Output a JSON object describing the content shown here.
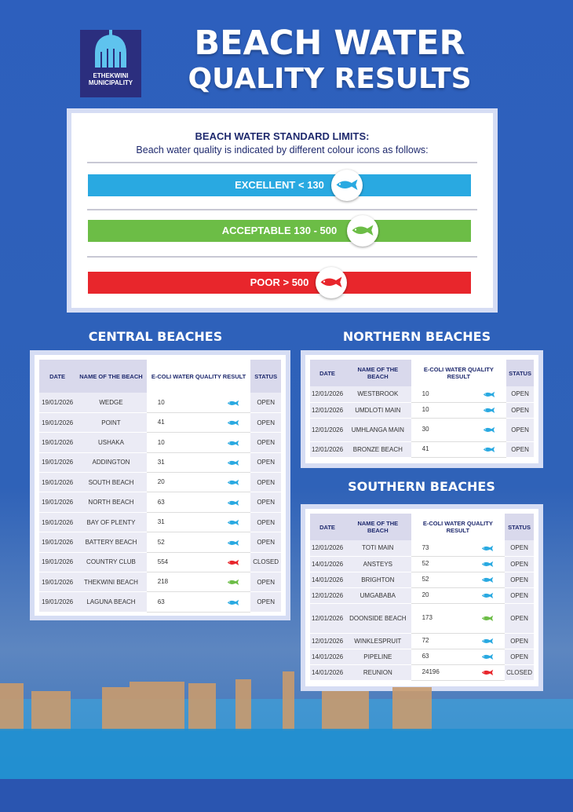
{
  "header": {
    "logo_text": [
      "ETHEKWINI",
      "MUNICIPALITY"
    ],
    "title": [
      "BEACH WATER",
      "QUALITY RESULTS"
    ]
  },
  "legend": {
    "title": "BEACH WATER STANDARD LIMITS:",
    "subtitle": "Beach water quality is indicated by different colour icons as follows:",
    "levels": [
      "EXCELLENT < 130",
      "ACCEPTABLE 130 - 500",
      "POOR > 500"
    ]
  },
  "central": {
    "title": "CENTRAL BEACHES",
    "columns": [
      "DATE",
      "NAME OF THE BEACH",
      "E-COLI WATER QUALITY RESULT",
      "STATUS"
    ],
    "rows": [
      [
        "19/01/2026",
        "WEDGE",
        10,
        "OPEN"
      ],
      [
        "19/01/2026",
        "POINT",
        41,
        "OPEN"
      ],
      [
        "19/01/2026",
        "USHAKA",
        10,
        "OPEN"
      ],
      [
        "19/01/2026",
        "ADDINGTON",
        31,
        "OPEN"
      ],
      [
        "19/01/2026",
        "SOUTH BEACH",
        20,
        "OPEN"
      ],
      [
        "19/01/2026",
        "NORTH BEACH",
        63,
        "OPEN"
      ],
      [
        "19/01/2026",
        "BAY OF PLENTY",
        31,
        "OPEN"
      ],
      [
        "19/01/2026",
        "BATTERY BEACH",
        52,
        "OPEN"
      ],
      [
        "19/01/2026",
        "COUNTRY CLUB",
        554,
        "CLOSED"
      ],
      [
        "19/01/2026",
        "THEKWINI BEACH",
        218,
        "OPEN"
      ],
      [
        "19/01/2026",
        "LAGUNA BEACH",
        63,
        "OPEN"
      ]
    ]
  },
  "northern": {
    "title": "NORTHERN BEACHES",
    "columns": [
      "DATE",
      "NAME OF THE BEACH",
      "E-COLI WATER QUALITY RESULT",
      "STATUS"
    ],
    "rows": [
      [
        "12/01/2026",
        "WESTBROOK",
        10,
        "OPEN"
      ],
      [
        "12/01/2026",
        "UMDLOTI MAIN",
        10,
        "OPEN"
      ],
      [
        "12/01/2026",
        "UMHLANGA MAIN",
        30,
        "OPEN"
      ],
      [
        "12/01/2026",
        "BRONZE BEACH",
        41,
        "OPEN"
      ]
    ]
  },
  "southern": {
    "title": "SOUTHERN BEACHES",
    "columns": [
      "DATE",
      "NAME OF THE BEACH",
      "E-COLI WATER QUALITY RESULT",
      "STATUS"
    ],
    "rows": [
      [
        "12/01/2026",
        "TOTI MAIN",
        73,
        "OPEN"
      ],
      [
        "14/01/2026",
        "ANSTEYS",
        52,
        "OPEN"
      ],
      [
        "14/01/2026",
        "BRIGHTON",
        52,
        "OPEN"
      ],
      [
        "12/01/2026",
        "UMGABABA",
        20,
        "OPEN"
      ],
      [
        "12/01/2026",
        "DOONSIDE BEACH",
        173,
        "OPEN"
      ],
      [
        "12/01/2026",
        "WINKLESPRUIT",
        72,
        "OPEN"
      ],
      [
        "14/01/2026",
        "PIPELINE",
        63,
        "OPEN"
      ],
      [
        "14/01/2026",
        "REUNION",
        24196,
        "CLOSED"
      ]
    ]
  }
}
